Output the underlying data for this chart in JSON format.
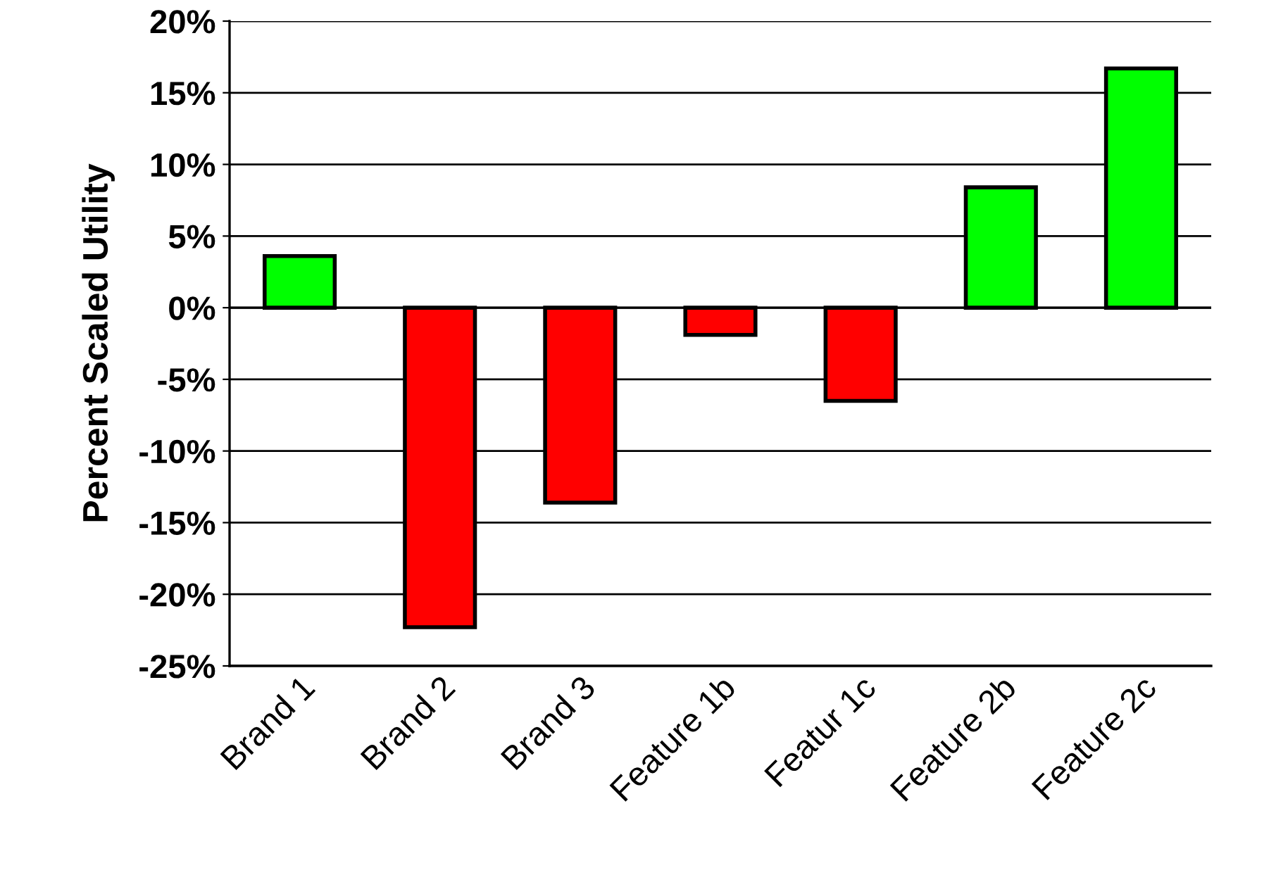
{
  "chart_data": {
    "type": "bar",
    "ylabel": "Percent Scaled Utility",
    "categories": [
      "Brand 1",
      "Brand 2",
      "Brand 3",
      "Feature 1b",
      "Featur 1c",
      "Feature 2b",
      "Feature 2c"
    ],
    "values": [
      3.6,
      -22.3,
      -13.6,
      -1.9,
      -6.5,
      8.4,
      16.7
    ],
    "colors": [
      "#00ff00",
      "#ff0000",
      "#ff0000",
      "#ff0000",
      "#ff0000",
      "#00ff00",
      "#00ff00"
    ],
    "ylim": [
      -25,
      20
    ],
    "yticks": [
      {
        "value": -25,
        "label": "-25%"
      },
      {
        "value": -20,
        "label": "-20%"
      },
      {
        "value": -15,
        "label": "-15%"
      },
      {
        "value": -10,
        "label": "-10%"
      },
      {
        "value": -5,
        "label": "-5%"
      },
      {
        "value": 0,
        "label": "0%"
      },
      {
        "value": 5,
        "label": "5%"
      },
      {
        "value": 10,
        "label": "10%"
      },
      {
        "value": 15,
        "label": "15%"
      },
      {
        "value": 20,
        "label": "20%"
      }
    ],
    "grid": "y",
    "legend": false
  }
}
